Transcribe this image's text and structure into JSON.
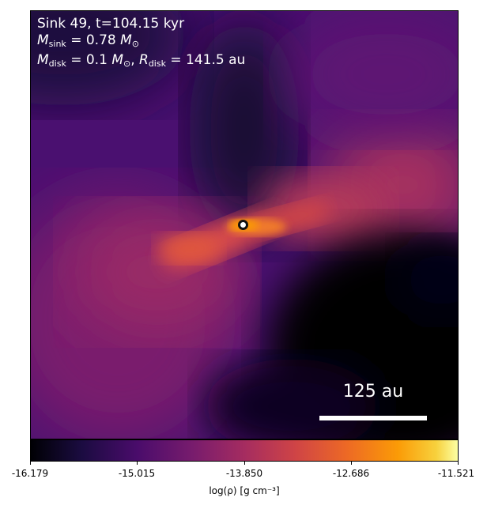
{
  "title_line": "Sink 49, t=104.15 kyr",
  "m_sink_value": "= 0.78",
  "m_disk_value": "= 0.1",
  "r_disk_value": "= 141.5",
  "unit_msun": "M",
  "unit_au": "au",
  "scalebar_label": "125 au",
  "colorbar": {
    "ticks": [
      "-16.179",
      "-15.015",
      "-13.850",
      "-12.686",
      "-11.521"
    ],
    "label": "log(ρ) [g cm⁻³]"
  },
  "colors": {
    "dark_void": "#000004",
    "ambient": "#4a0c6b",
    "filament": "#cf4446",
    "core": "#fb9b06"
  }
}
